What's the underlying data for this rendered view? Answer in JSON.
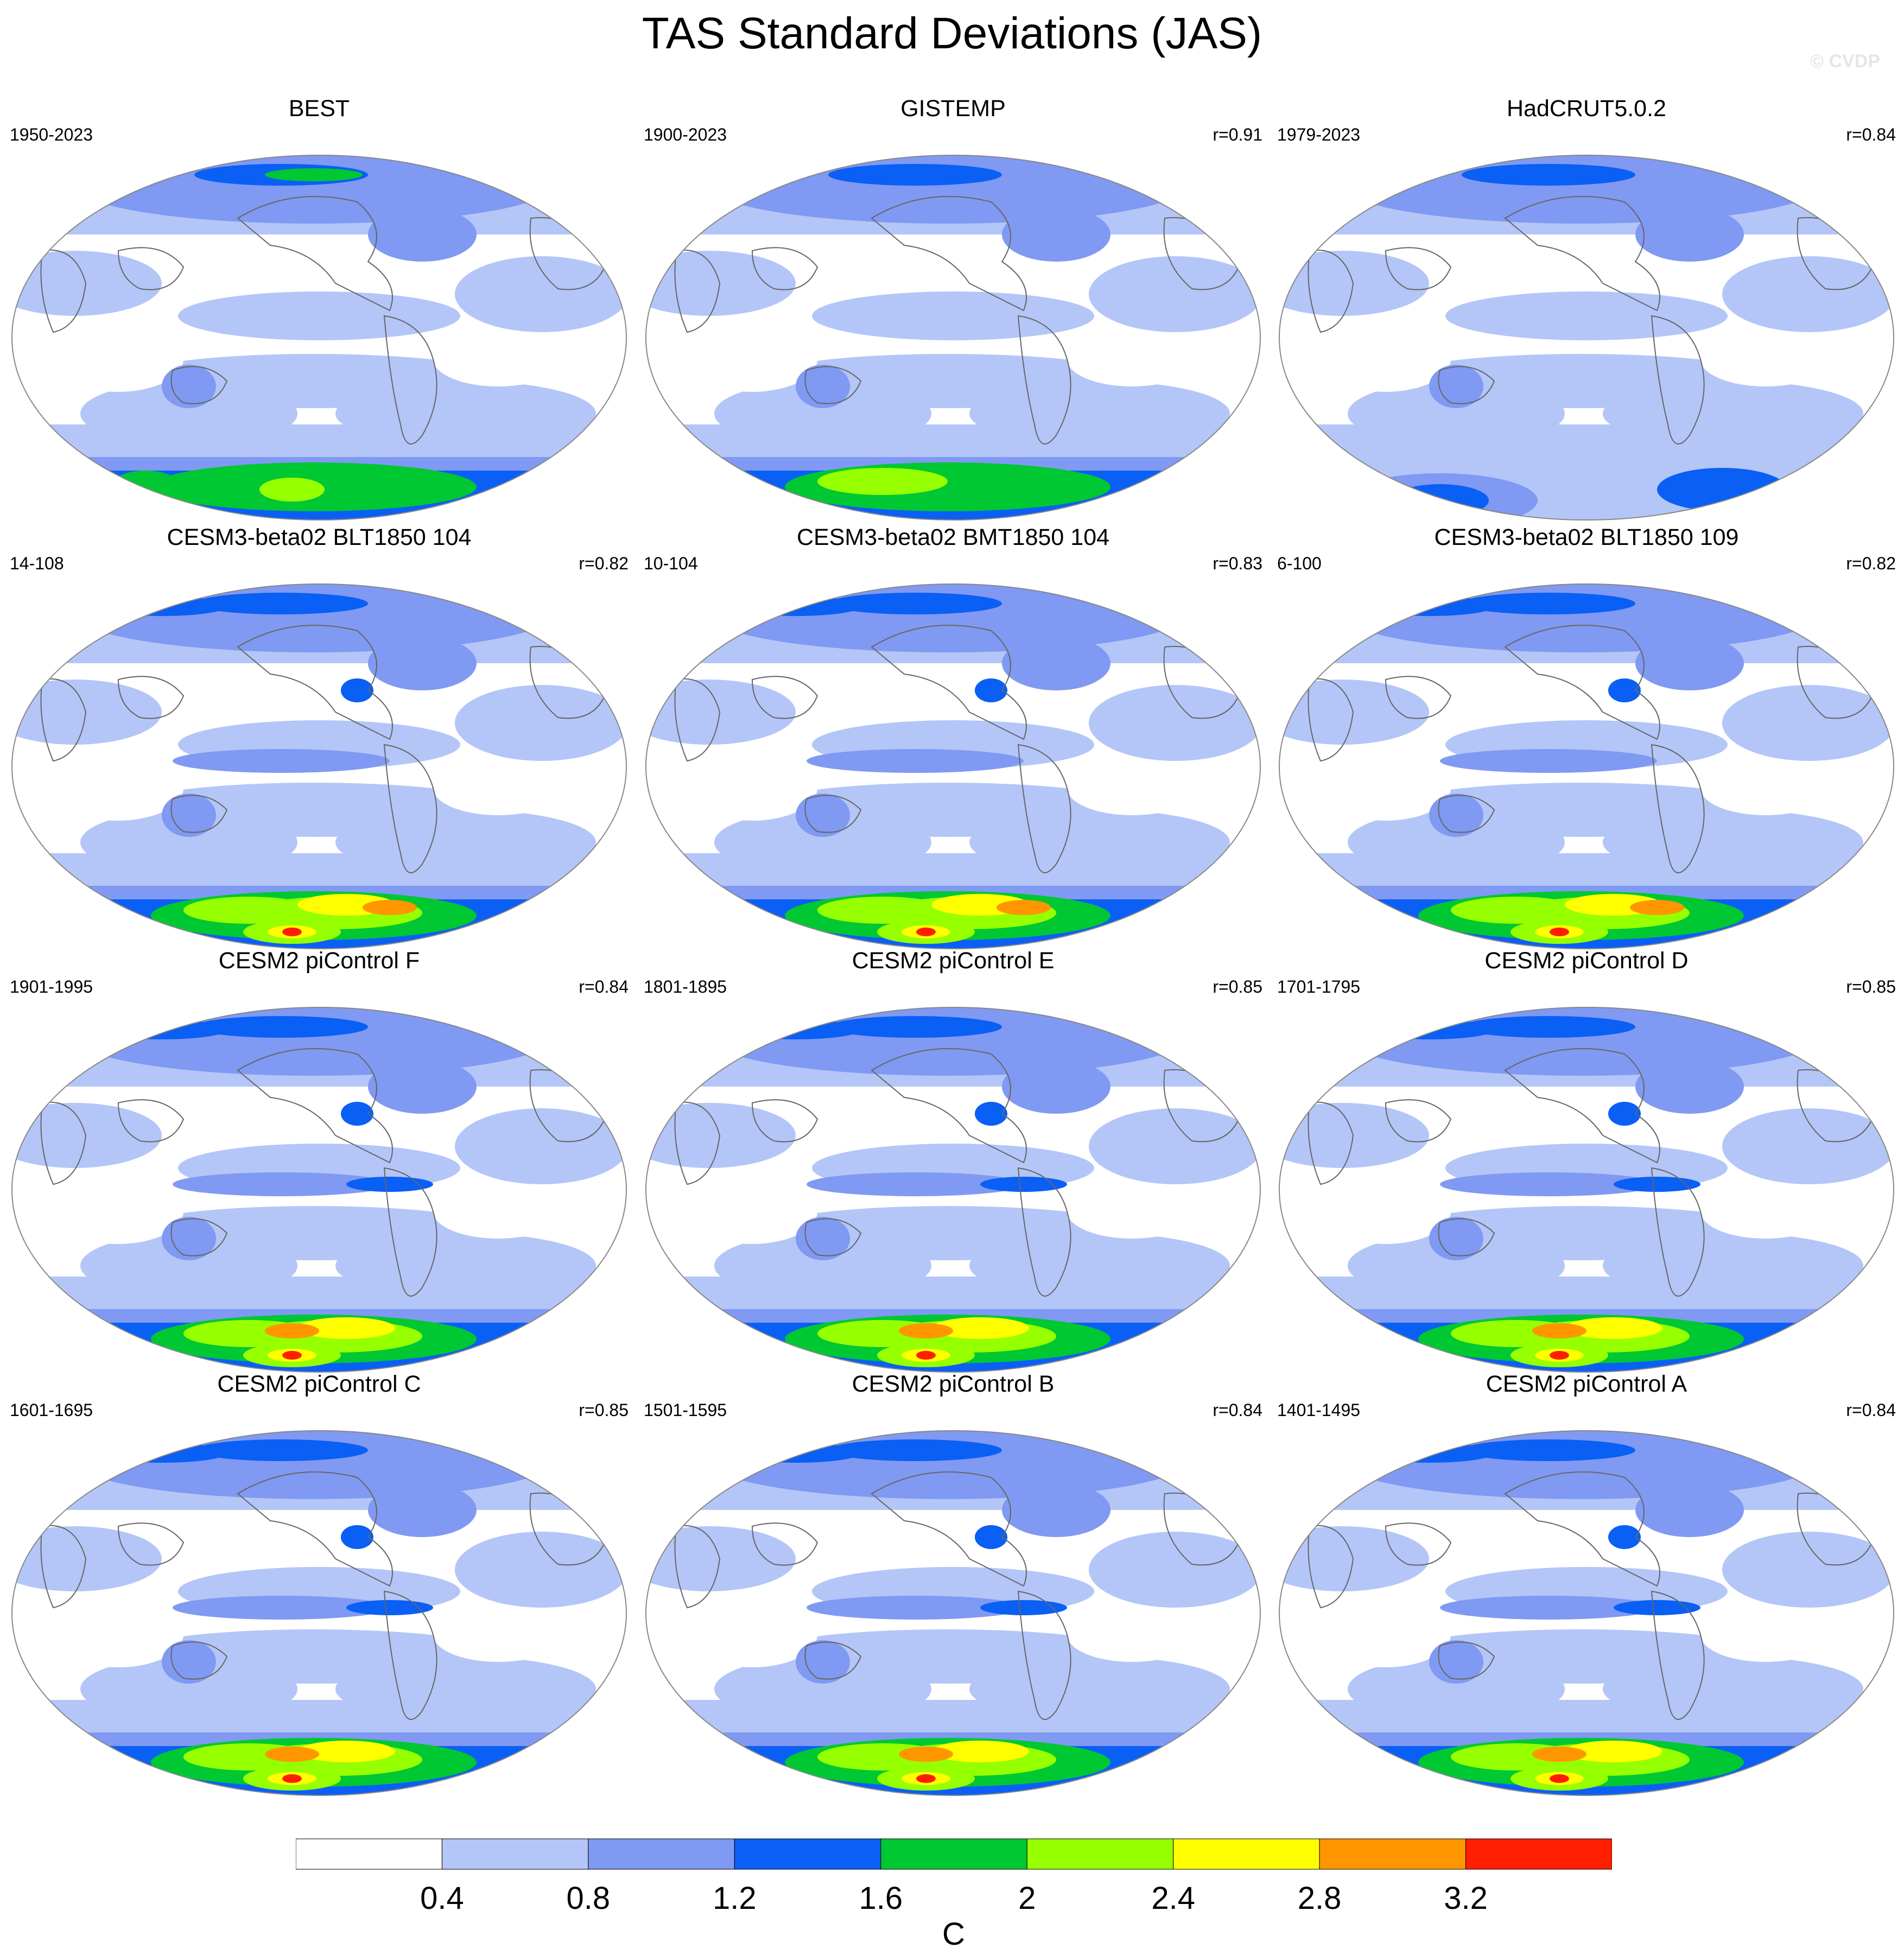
{
  "title": "TAS Standard Deviations (JAS)",
  "watermark": "© CVDP",
  "colorbar": {
    "units": "C",
    "ticks": [
      "0.4",
      "0.8",
      "1.2",
      "1.6",
      "2",
      "2.4",
      "2.8",
      "3.2"
    ],
    "bins": [
      {
        "range": "< 0.4",
        "color": "#ffffff"
      },
      {
        "range": "0.4-0.8",
        "color": "#b4c6f7"
      },
      {
        "range": "0.8-1.2",
        "color": "#8099f2"
      },
      {
        "range": "1.2-1.6",
        "color": "#0a5ff5"
      },
      {
        "range": "1.6-2.0",
        "color": "#00c832"
      },
      {
        "range": "2.0-2.4",
        "color": "#96ff00"
      },
      {
        "range": "2.4-2.8",
        "color": "#ffff00"
      },
      {
        "range": "2.8-3.2",
        "color": "#ff9600"
      },
      {
        "range": "> 3.2",
        "color": "#ff1e00"
      }
    ]
  },
  "panels": [
    {
      "title": "BEST",
      "years": "1950-2023",
      "r": ""
    },
    {
      "title": "GISTEMP",
      "years": "1900-2023",
      "r": "r=0.91"
    },
    {
      "title": "HadCRUT5.0.2",
      "years": "1979-2023",
      "r": "r=0.84"
    },
    {
      "title": "CESM3-beta02 BLT1850 104",
      "years": "14-108",
      "r": "r=0.82"
    },
    {
      "title": "CESM3-beta02 BMT1850 104",
      "years": "10-104",
      "r": "r=0.83"
    },
    {
      "title": "CESM3-beta02 BLT1850 109",
      "years": "6-100",
      "r": "r=0.82"
    },
    {
      "title": "CESM2 piControl F",
      "years": "1901-1995",
      "r": "r=0.84"
    },
    {
      "title": "CESM2 piControl E",
      "years": "1801-1895",
      "r": "r=0.85"
    },
    {
      "title": "CESM2 piControl D",
      "years": "1701-1795",
      "r": "r=0.85"
    },
    {
      "title": "CESM2 piControl C",
      "years": "1601-1695",
      "r": "r=0.85"
    },
    {
      "title": "CESM2 piControl B",
      "years": "1501-1595",
      "r": "r=0.84"
    },
    {
      "title": "CESM2 piControl A",
      "years": "1401-1495",
      "r": "r=0.84"
    }
  ]
}
